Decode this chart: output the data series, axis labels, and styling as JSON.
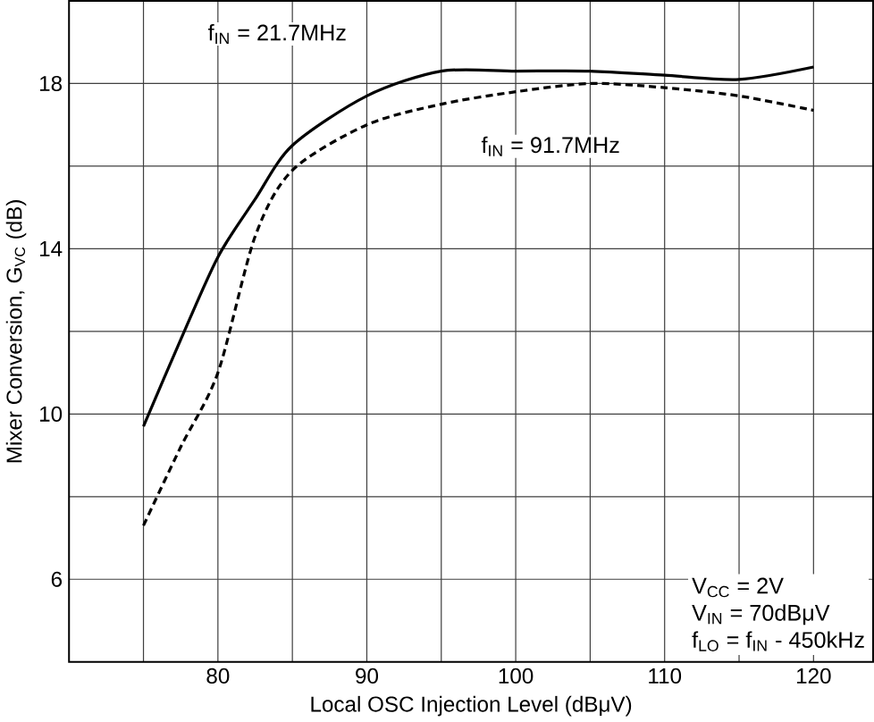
{
  "chart_data": {
    "type": "line",
    "xlabel": "Local OSC Injection Level (dBμV)",
    "ylabel": "Mixer Conversion, G$_{VC}$ (dB)",
    "x": [
      75,
      77.5,
      80,
      82.5,
      85,
      90,
      95,
      100,
      105,
      110,
      115,
      120
    ],
    "series": [
      {
        "name": "f$_{IN}$ = 21.7MHz",
        "color": "#000000",
        "line_style": "solid",
        "values": [
          9.7,
          11.8,
          13.8,
          15.2,
          16.5,
          17.7,
          18.3,
          18.3,
          18.3,
          18.2,
          18.1,
          18.4
        ]
      },
      {
        "name": "f$_{IN}$ = 91.7MHz",
        "color": "#000000",
        "line_style": "dashed",
        "values": [
          7.3,
          9.2,
          11.0,
          14.3,
          15.9,
          17.0,
          17.5,
          17.8,
          18.0,
          17.9,
          17.7,
          17.35
        ]
      }
    ],
    "annotations": [
      "V$_{CC}$ = 2V",
      "V$_{IN}$ = 70dBμV",
      "f$_{LO}$ = f$_{IN}$ - 450kHz"
    ],
    "xlim": [
      70,
      124
    ],
    "ylim": [
      4,
      20
    ],
    "xticks": [
      {
        "value": 75,
        "label": null
      },
      80,
      {
        "value": 85,
        "label": null
      },
      90,
      {
        "value": 95,
        "label": null
      },
      100,
      {
        "value": 105,
        "label": null
      },
      110,
      {
        "value": 115,
        "label": null
      },
      120
    ],
    "yticks": [
      6,
      {
        "value": 8,
        "label": null
      },
      10,
      {
        "value": 12,
        "label": null
      },
      14,
      {
        "value": 16,
        "label": null
      },
      18
    ],
    "grid": true,
    "legend": false,
    "marker": "none"
  }
}
